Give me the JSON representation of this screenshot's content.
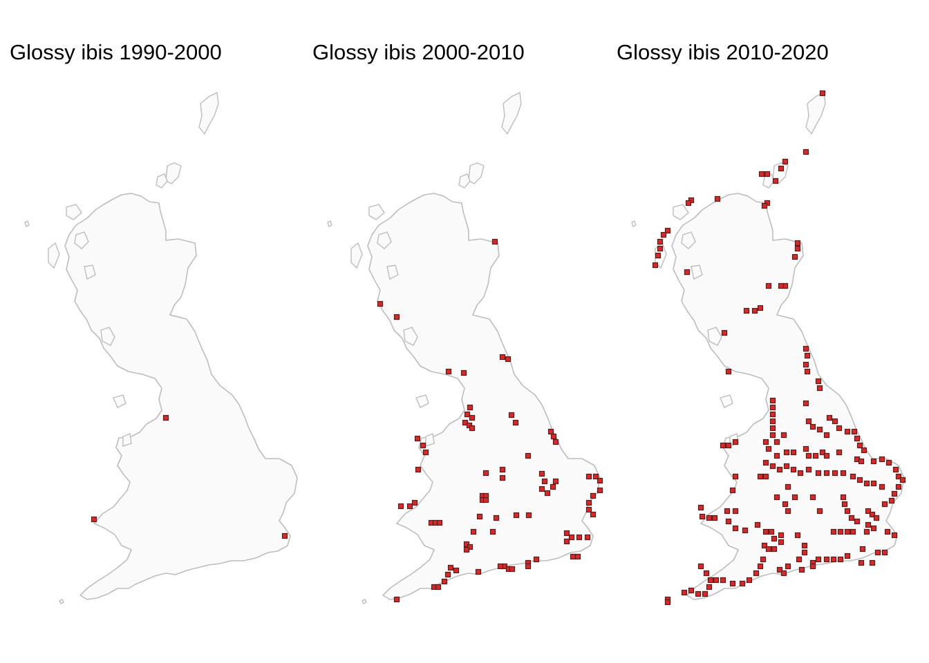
{
  "panels": [
    {
      "title": "Glossy ibis 1990-2000",
      "records": [
        [
          240,
          605
        ],
        [
          136,
          752
        ],
        [
          412,
          776
        ]
      ]
    },
    {
      "title": "Glossy ibis 2000-2010",
      "records": [
        [
          716,
          350
        ],
        [
          550,
          440
        ],
        [
          574,
          459
        ],
        [
          727,
          517
        ],
        [
          735,
          520
        ],
        [
          649,
          538
        ],
        [
          671,
          540
        ],
        [
          680,
          590
        ],
        [
          676,
          600
        ],
        [
          683,
          605
        ],
        [
          673,
          612
        ],
        [
          679,
          616
        ],
        [
          683,
          620
        ],
        [
          740,
          601
        ],
        [
          746,
          612
        ],
        [
          604,
          635
        ],
        [
          612,
          645
        ],
        [
          616,
          655
        ],
        [
          605,
          680
        ],
        [
          797,
          625
        ],
        [
          801,
          632
        ],
        [
          804,
          640
        ],
        [
          764,
          660
        ],
        [
          703,
          685
        ],
        [
          727,
          680
        ],
        [
          727,
          692
        ],
        [
          784,
          686
        ],
        [
          788,
          697
        ],
        [
          784,
          708
        ],
        [
          792,
          714
        ],
        [
          800,
          705
        ],
        [
          804,
          697
        ],
        [
          852,
          690
        ],
        [
          862,
          690
        ],
        [
          868,
          696
        ],
        [
          868,
          710
        ],
        [
          858,
          718
        ],
        [
          852,
          728
        ],
        [
          852,
          738
        ],
        [
          858,
          745
        ],
        [
          698,
          718
        ],
        [
          703,
          718
        ],
        [
          698,
          724
        ],
        [
          703,
          724
        ],
        [
          580,
          733
        ],
        [
          593,
          733
        ],
        [
          600,
          728
        ],
        [
          624,
          757
        ],
        [
          630,
          757
        ],
        [
          636,
          757
        ],
        [
          694,
          748
        ],
        [
          718,
          750
        ],
        [
          747,
          746
        ],
        [
          765,
          746
        ],
        [
          713,
          770
        ],
        [
          685,
          770
        ],
        [
          675,
          788
        ],
        [
          680,
          792
        ],
        [
          675,
          796
        ],
        [
          820,
          772
        ],
        [
          827,
          778
        ],
        [
          838,
          778
        ],
        [
          850,
          778
        ],
        [
          820,
          784
        ],
        [
          829,
          806
        ],
        [
          836,
          806
        ],
        [
          776,
          810
        ],
        [
          764,
          815
        ],
        [
          764,
          820
        ],
        [
          730,
          820
        ],
        [
          736,
          824
        ],
        [
          741,
          824
        ],
        [
          724,
          820
        ],
        [
          692,
          828
        ],
        [
          660,
          826
        ],
        [
          652,
          822
        ],
        [
          648,
          832
        ],
        [
          643,
          842
        ],
        [
          628,
          850
        ],
        [
          634,
          850
        ],
        [
          574,
          868
        ]
      ]
    },
    {
      "title": "Glossy ibis 2010-2020",
      "records": [
        [
          1190,
          135
        ],
        [
          1166,
          220
        ],
        [
          1136,
          234
        ],
        [
          1130,
          244
        ],
        [
          1122,
          262
        ],
        [
          1110,
          252
        ],
        [
          1102,
          252
        ],
        [
          1000,
          290
        ],
        [
          996,
          294
        ],
        [
          1038,
          288
        ],
        [
          1110,
          294
        ],
        [
          1106,
          298
        ],
        [
          966,
          334
        ],
        [
          960,
          340
        ],
        [
          955,
          350
        ],
        [
          955,
          360
        ],
        [
          952,
          370
        ],
        [
          948,
          384
        ],
        [
          994,
          394
        ],
        [
          1154,
          352
        ],
        [
          1154,
          360
        ],
        [
          1150,
          372
        ],
        [
          1136,
          414
        ],
        [
          1130,
          414
        ],
        [
          1112,
          414
        ],
        [
          1100,
          446
        ],
        [
          1092,
          450
        ],
        [
          1080,
          450
        ],
        [
          1048,
          482
        ],
        [
          1054,
          538
        ],
        [
          1166,
          505
        ],
        [
          1168,
          515
        ],
        [
          1166,
          528
        ],
        [
          1168,
          538
        ],
        [
          1184,
          552
        ],
        [
          1186,
          562
        ],
        [
          1166,
          584
        ],
        [
          1118,
          580
        ],
        [
          1118,
          590
        ],
        [
          1118,
          600
        ],
        [
          1118,
          610
        ],
        [
          1118,
          620
        ],
        [
          1118,
          630
        ],
        [
          1108,
          640
        ],
        [
          1124,
          640
        ],
        [
          1134,
          630
        ],
        [
          1170,
          610
        ],
        [
          1176,
          618
        ],
        [
          1186,
          622
        ],
        [
          1196,
          630
        ],
        [
          1200,
          605
        ],
        [
          1208,
          610
        ],
        [
          1214,
          620
        ],
        [
          1226,
          625
        ],
        [
          1236,
          625
        ],
        [
          1240,
          635
        ],
        [
          1244,
          645
        ],
        [
          1250,
          652
        ],
        [
          1046,
          645
        ],
        [
          1054,
          645
        ],
        [
          1064,
          640
        ],
        [
          1112,
          650
        ],
        [
          1124,
          660
        ],
        [
          1138,
          655
        ],
        [
          1148,
          655
        ],
        [
          1166,
          650
        ],
        [
          1170,
          660
        ],
        [
          1180,
          660
        ],
        [
          1190,
          655
        ],
        [
          1196,
          660
        ],
        [
          1214,
          655
        ],
        [
          1240,
          665
        ],
        [
          1246,
          668
        ],
        [
          1264,
          668
        ],
        [
          1276,
          665
        ],
        [
          1286,
          670
        ],
        [
          1296,
          680
        ],
        [
          1300,
          690
        ],
        [
          1306,
          695
        ],
        [
          1300,
          705
        ],
        [
          1294,
          715
        ],
        [
          1290,
          725
        ],
        [
          1280,
          730
        ],
        [
          1108,
          670
        ],
        [
          1118,
          675
        ],
        [
          1128,
          680
        ],
        [
          1138,
          675
        ],
        [
          1148,
          680
        ],
        [
          1158,
          685
        ],
        [
          1170,
          680
        ],
        [
          1184,
          685
        ],
        [
          1196,
          685
        ],
        [
          1208,
          685
        ],
        [
          1220,
          685
        ],
        [
          1234,
          690
        ],
        [
          1244,
          695
        ],
        [
          1254,
          700
        ],
        [
          1264,
          700
        ],
        [
          1276,
          705
        ],
        [
          1100,
          690
        ],
        [
          1108,
          690
        ],
        [
          1064,
          690
        ],
        [
          1060,
          710
        ],
        [
          1140,
          705
        ],
        [
          1150,
          720
        ],
        [
          1124,
          720
        ],
        [
          1136,
          730
        ],
        [
          1140,
          740
        ],
        [
          1176,
          720
        ],
        [
          1186,
          740
        ],
        [
          1220,
          720
        ],
        [
          1222,
          730
        ],
        [
          1226,
          740
        ],
        [
          1232,
          750
        ],
        [
          1240,
          755
        ],
        [
          1256,
          740
        ],
        [
          1262,
          745
        ],
        [
          1268,
          750
        ],
        [
          1256,
          760
        ],
        [
          1264,
          765
        ],
        [
          1254,
          770
        ],
        [
          1284,
          770
        ],
        [
          1294,
          775
        ],
        [
          1014,
          735
        ],
        [
          1016,
          748
        ],
        [
          1026,
          750
        ],
        [
          1034,
          750
        ],
        [
          1052,
          740
        ],
        [
          1064,
          740
        ],
        [
          1054,
          755
        ],
        [
          1064,
          765
        ],
        [
          1078,
          768
        ],
        [
          1096,
          760
        ],
        [
          1108,
          770
        ],
        [
          1116,
          770
        ],
        [
          1120,
          780
        ],
        [
          1130,
          775
        ],
        [
          1130,
          785
        ],
        [
          1106,
          790
        ],
        [
          1112,
          795
        ],
        [
          1120,
          795
        ],
        [
          1206,
          770
        ],
        [
          1216,
          770
        ],
        [
          1226,
          770
        ],
        [
          1234,
          770
        ],
        [
          1248,
          795
        ],
        [
          1270,
          800
        ],
        [
          1280,
          800
        ],
        [
          1154,
          775
        ],
        [
          1164,
          790
        ],
        [
          1164,
          800
        ],
        [
          1156,
          810
        ],
        [
          1176,
          815
        ],
        [
          1184,
          810
        ],
        [
          1196,
          810
        ],
        [
          1206,
          810
        ],
        [
          1216,
          810
        ],
        [
          1226,
          805
        ],
        [
          1246,
          815
        ],
        [
          1262,
          815
        ],
        [
          1100,
          820
        ],
        [
          1094,
          830
        ],
        [
          1084,
          840
        ],
        [
          1074,
          845
        ],
        [
          1060,
          845
        ],
        [
          1046,
          840
        ],
        [
          1036,
          840
        ],
        [
          1104,
          810
        ],
        [
          1128,
          825
        ],
        [
          1134,
          830
        ],
        [
          1140,
          820
        ],
        [
          1160,
          825
        ],
        [
          1176,
          820
        ],
        [
          1014,
          820
        ],
        [
          1022,
          830
        ],
        [
          1028,
          840
        ],
        [
          1026,
          850
        ],
        [
          1020,
          860
        ],
        [
          1010,
          860
        ],
        [
          1000,
          855
        ],
        [
          990,
          858
        ],
        [
          966,
          868
        ],
        [
          966,
          872
        ]
      ]
    }
  ]
}
